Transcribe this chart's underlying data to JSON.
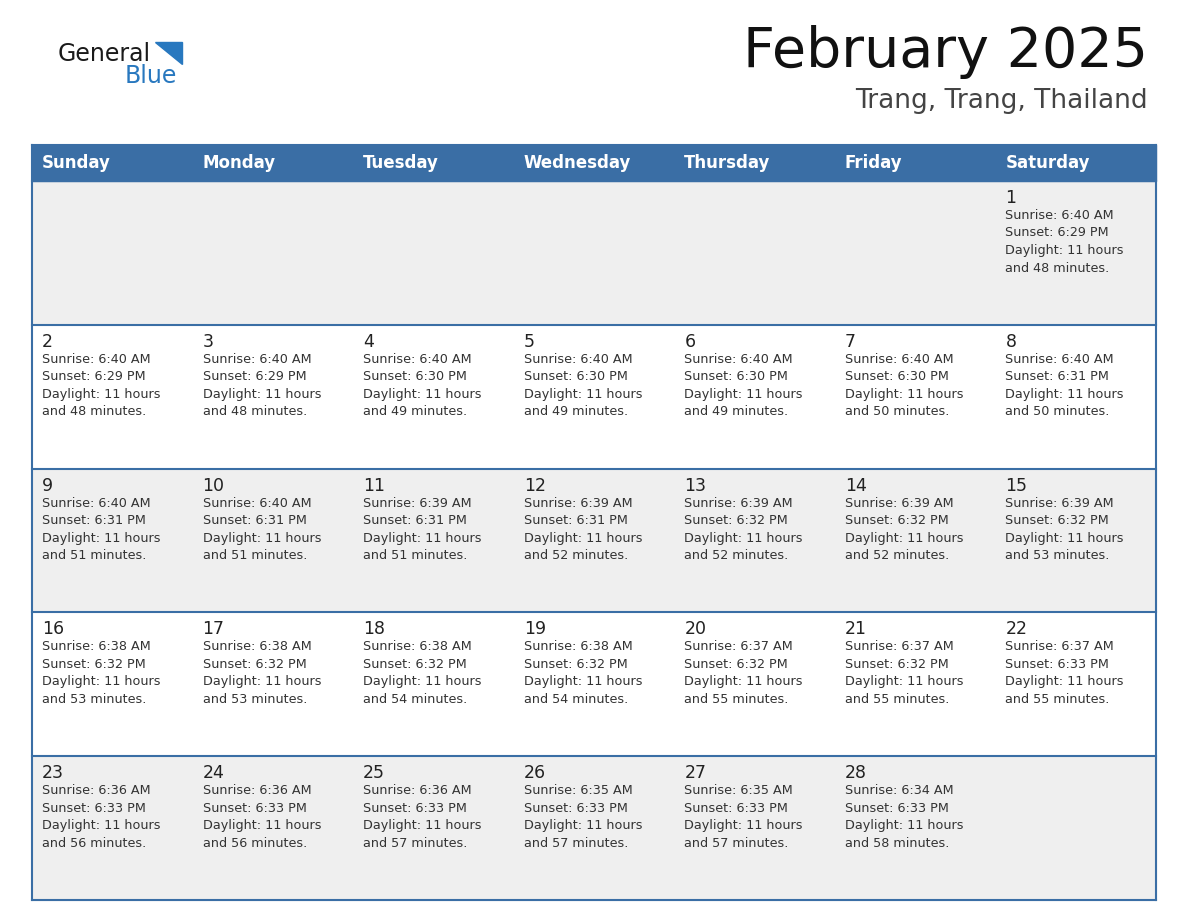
{
  "title": "February 2025",
  "subtitle": "Trang, Trang, Thailand",
  "days_of_week": [
    "Sunday",
    "Monday",
    "Tuesday",
    "Wednesday",
    "Thursday",
    "Friday",
    "Saturday"
  ],
  "header_bg": "#3a6ea5",
  "header_text": "#ffffff",
  "row_bg_light": "#efefef",
  "row_bg_white": "#ffffff",
  "cell_border": "#3a6ea5",
  "day_num_color": "#222222",
  "info_text_color": "#333333",
  "logo_general_color": "#1a1a1a",
  "logo_blue_color": "#2878bf",
  "calendar_data": [
    [
      null,
      null,
      null,
      null,
      null,
      null,
      {
        "day": 1,
        "sunrise": "6:40 AM",
        "sunset": "6:29 PM",
        "daylight": "11 hours and 48 minutes."
      }
    ],
    [
      {
        "day": 2,
        "sunrise": "6:40 AM",
        "sunset": "6:29 PM",
        "daylight": "11 hours and 48 minutes."
      },
      {
        "day": 3,
        "sunrise": "6:40 AM",
        "sunset": "6:29 PM",
        "daylight": "11 hours and 48 minutes."
      },
      {
        "day": 4,
        "sunrise": "6:40 AM",
        "sunset": "6:30 PM",
        "daylight": "11 hours and 49 minutes."
      },
      {
        "day": 5,
        "sunrise": "6:40 AM",
        "sunset": "6:30 PM",
        "daylight": "11 hours and 49 minutes."
      },
      {
        "day": 6,
        "sunrise": "6:40 AM",
        "sunset": "6:30 PM",
        "daylight": "11 hours and 49 minutes."
      },
      {
        "day": 7,
        "sunrise": "6:40 AM",
        "sunset": "6:30 PM",
        "daylight": "11 hours and 50 minutes."
      },
      {
        "day": 8,
        "sunrise": "6:40 AM",
        "sunset": "6:31 PM",
        "daylight": "11 hours and 50 minutes."
      }
    ],
    [
      {
        "day": 9,
        "sunrise": "6:40 AM",
        "sunset": "6:31 PM",
        "daylight": "11 hours and 51 minutes."
      },
      {
        "day": 10,
        "sunrise": "6:40 AM",
        "sunset": "6:31 PM",
        "daylight": "11 hours and 51 minutes."
      },
      {
        "day": 11,
        "sunrise": "6:39 AM",
        "sunset": "6:31 PM",
        "daylight": "11 hours and 51 minutes."
      },
      {
        "day": 12,
        "sunrise": "6:39 AM",
        "sunset": "6:31 PM",
        "daylight": "11 hours and 52 minutes."
      },
      {
        "day": 13,
        "sunrise": "6:39 AM",
        "sunset": "6:32 PM",
        "daylight": "11 hours and 52 minutes."
      },
      {
        "day": 14,
        "sunrise": "6:39 AM",
        "sunset": "6:32 PM",
        "daylight": "11 hours and 52 minutes."
      },
      {
        "day": 15,
        "sunrise": "6:39 AM",
        "sunset": "6:32 PM",
        "daylight": "11 hours and 53 minutes."
      }
    ],
    [
      {
        "day": 16,
        "sunrise": "6:38 AM",
        "sunset": "6:32 PM",
        "daylight": "11 hours and 53 minutes."
      },
      {
        "day": 17,
        "sunrise": "6:38 AM",
        "sunset": "6:32 PM",
        "daylight": "11 hours and 53 minutes."
      },
      {
        "day": 18,
        "sunrise": "6:38 AM",
        "sunset": "6:32 PM",
        "daylight": "11 hours and 54 minutes."
      },
      {
        "day": 19,
        "sunrise": "6:38 AM",
        "sunset": "6:32 PM",
        "daylight": "11 hours and 54 minutes."
      },
      {
        "day": 20,
        "sunrise": "6:37 AM",
        "sunset": "6:32 PM",
        "daylight": "11 hours and 55 minutes."
      },
      {
        "day": 21,
        "sunrise": "6:37 AM",
        "sunset": "6:32 PM",
        "daylight": "11 hours and 55 minutes."
      },
      {
        "day": 22,
        "sunrise": "6:37 AM",
        "sunset": "6:33 PM",
        "daylight": "11 hours and 55 minutes."
      }
    ],
    [
      {
        "day": 23,
        "sunrise": "6:36 AM",
        "sunset": "6:33 PM",
        "daylight": "11 hours and 56 minutes."
      },
      {
        "day": 24,
        "sunrise": "6:36 AM",
        "sunset": "6:33 PM",
        "daylight": "11 hours and 56 minutes."
      },
      {
        "day": 25,
        "sunrise": "6:36 AM",
        "sunset": "6:33 PM",
        "daylight": "11 hours and 57 minutes."
      },
      {
        "day": 26,
        "sunrise": "6:35 AM",
        "sunset": "6:33 PM",
        "daylight": "11 hours and 57 minutes."
      },
      {
        "day": 27,
        "sunrise": "6:35 AM",
        "sunset": "6:33 PM",
        "daylight": "11 hours and 57 minutes."
      },
      {
        "day": 28,
        "sunrise": "6:34 AM",
        "sunset": "6:33 PM",
        "daylight": "11 hours and 58 minutes."
      },
      null
    ]
  ],
  "fig_width": 11.88,
  "fig_height": 9.18,
  "dpi": 100
}
